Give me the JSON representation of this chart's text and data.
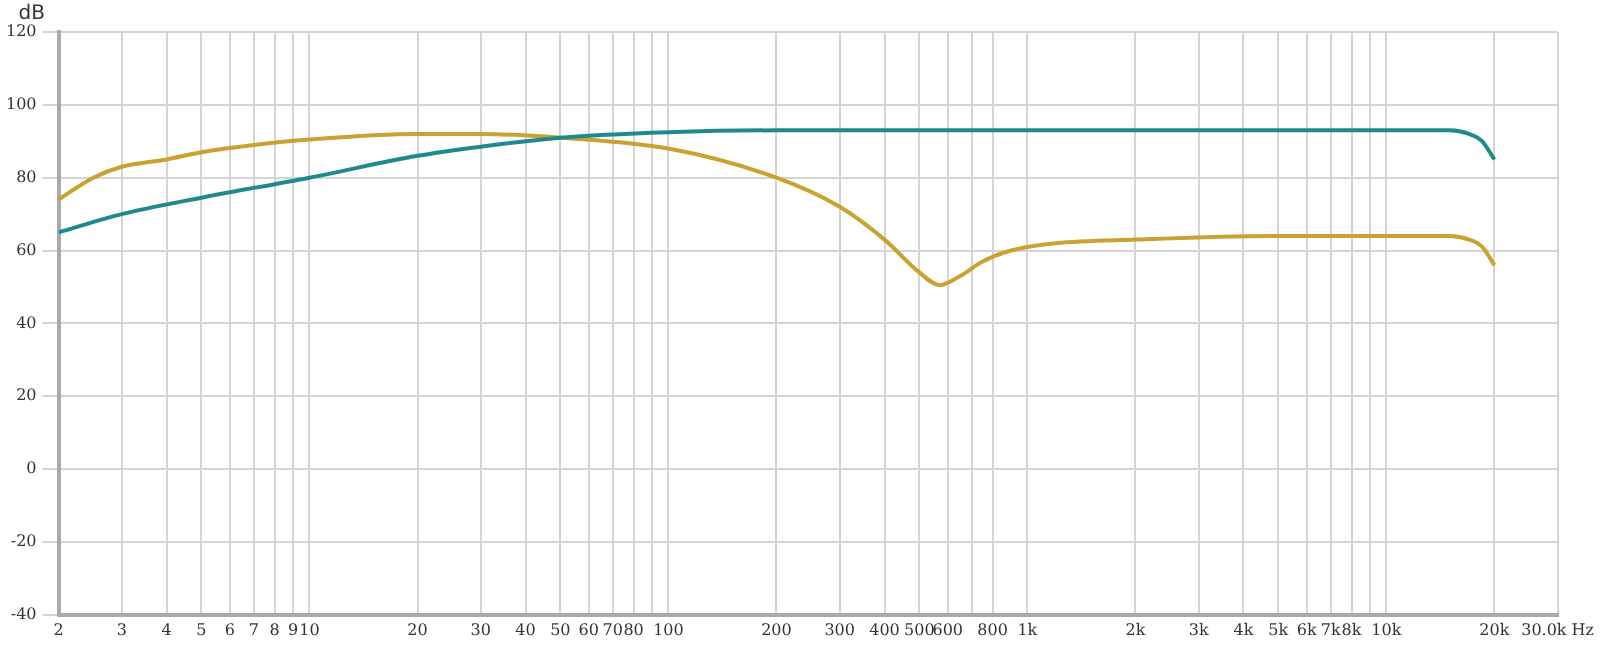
{
  "chart_data": {
    "type": "line",
    "ylabel": "dB",
    "log": "x",
    "grid": true,
    "legend": false,
    "marker": "none",
    "line_style": "solid",
    "xlim": [
      2,
      30000
    ],
    "ylim": [
      -40,
      120
    ],
    "xticks": [
      2,
      3,
      4,
      5,
      6,
      7,
      8,
      9,
      10,
      20,
      30,
      40,
      50,
      60,
      70,
      80,
      {
        "value": 90,
        "label": null
      },
      100,
      200,
      300,
      400,
      500,
      600,
      {
        "value": 700,
        "label": null
      },
      800,
      {
        "value": 1000,
        "label": "1k"
      },
      {
        "value": 2000,
        "label": "2k"
      },
      {
        "value": 3000,
        "label": "3k"
      },
      {
        "value": 4000,
        "label": "4k"
      },
      {
        "value": 5000,
        "label": "5k"
      },
      {
        "value": 6000,
        "label": "6k"
      },
      {
        "value": 7000,
        "label": "7k"
      },
      {
        "value": 8000,
        "label": "8k"
      },
      {
        "value": 9000,
        "label": null
      },
      {
        "value": 10000,
        "label": "10k"
      },
      {
        "value": 20000,
        "label": "20k"
      },
      {
        "value": 30000,
        "label": "30.0k Hz"
      }
    ],
    "yticks": [
      -40,
      -20,
      0,
      20,
      40,
      60,
      80,
      100,
      120
    ],
    "series": [
      {
        "color": "#1f8a8c",
        "x": [
          2,
          3,
          5,
          10,
          20,
          30,
          50,
          100,
          200,
          1000,
          10000,
          15000,
          17000,
          18500,
          20000
        ],
        "values": [
          65,
          70,
          74.5,
          80,
          86,
          88.5,
          91,
          92.5,
          93,
          93,
          93,
          93,
          92,
          90,
          85
        ]
      },
      {
        "color": "#c9a232",
        "x": [
          2,
          2.5,
          3,
          4,
          5,
          7,
          10,
          20,
          30,
          50,
          100,
          200,
          300,
          400,
          500,
          570,
          650,
          750,
          900,
          1200,
          2000,
          5000,
          10000,
          15000,
          17000,
          18500,
          20000
        ],
        "values": [
          74,
          80,
          83,
          85,
          87,
          89,
          90.5,
          92,
          92,
          91,
          88,
          80,
          72,
          63,
          54,
          50.5,
          53,
          57,
          60,
          62,
          63,
          64,
          64,
          64,
          63,
          61,
          56
        ]
      }
    ]
  }
}
